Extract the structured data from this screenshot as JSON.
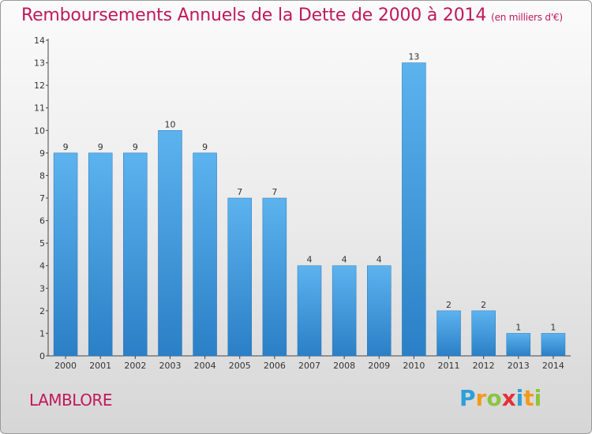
{
  "title": "Remboursements Annuels de la Dette de 2000 à 2014",
  "subtitle": "(en milliers d'€)",
  "commune": "LAMBLORE",
  "logo": {
    "text": "Proxiti",
    "letters": [
      {
        "char": "P",
        "color": "#2d9fd9"
      },
      {
        "char": "r",
        "color": "#f39a1e"
      },
      {
        "char": "o",
        "color": "#8bc53f"
      },
      {
        "char": "x",
        "color": "#e2313c"
      },
      {
        "char": "i",
        "color": "#2d9fd9"
      },
      {
        "char": "t",
        "color": "#f39a1e"
      },
      {
        "char": "i",
        "color": "#8bc53f"
      }
    ]
  },
  "colors": {
    "bar": "#4a9fe0",
    "title": "#c0185b",
    "axis": "#333333"
  },
  "chart_data": {
    "type": "bar",
    "categories": [
      "2000",
      "2001",
      "2002",
      "2003",
      "2004",
      "2005",
      "2006",
      "2007",
      "2008",
      "2009",
      "2010",
      "2011",
      "2012",
      "2013",
      "2014"
    ],
    "values": [
      9,
      9,
      9,
      10,
      9,
      7,
      7,
      4,
      4,
      4,
      13,
      2,
      2,
      1,
      1
    ],
    "ylim": [
      0,
      14
    ],
    "yticks": [
      0,
      1,
      2,
      3,
      4,
      5,
      6,
      7,
      8,
      9,
      10,
      11,
      12,
      13,
      14
    ],
    "grid": false,
    "legend": "none",
    "data_labels": true
  }
}
